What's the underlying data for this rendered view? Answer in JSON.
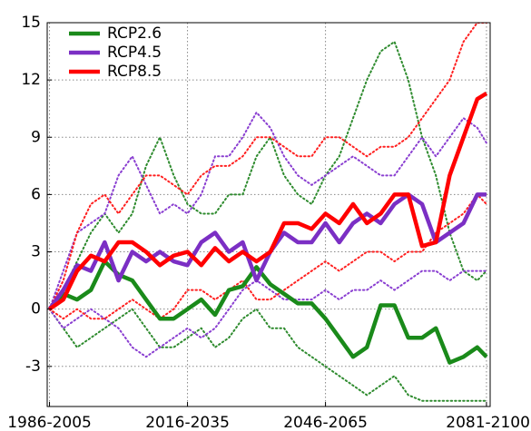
{
  "chart_data": {
    "type": "line",
    "x": [
      1986,
      1989,
      1992,
      1995,
      1998,
      2001,
      2004,
      2007,
      2010,
      2013,
      2016,
      2019,
      2022,
      2025,
      2028,
      2031,
      2034,
      2037,
      2040,
      2043,
      2046,
      2049,
      2052,
      2055,
      2058,
      2061,
      2064,
      2067,
      2070,
      2073,
      2076,
      2079,
      2081
    ],
    "xlim": [
      1985.5,
      2081.8
    ],
    "xticks": [
      {
        "value": 1986,
        "label": "1986-2005"
      },
      {
        "value": 2016,
        "label": "2016-2035"
      },
      {
        "value": 2046,
        "label": "2046-2065"
      },
      {
        "value": 2081,
        "label": "2081-2100"
      }
    ],
    "ylim": [
      -5.1,
      15
    ],
    "yticks": [
      -3,
      0,
      3,
      6,
      9,
      12,
      15
    ],
    "grid": true,
    "legend": "upper-left",
    "series": [
      {
        "color": "#2e8b2e",
        "linestyle": "dotted",
        "values": [
          0,
          1,
          2.5,
          4,
          5,
          4,
          5,
          7.5,
          9,
          7,
          5.5,
          5,
          5,
          6,
          6,
          8,
          9,
          7,
          6,
          5.5,
          7,
          8,
          10,
          12,
          13.5,
          14,
          12,
          9,
          7,
          4,
          2,
          1.5,
          2
        ]
      },
      {
        "color": "#2e8b2e",
        "linestyle": "dotted",
        "values": [
          0,
          -1,
          -2,
          -1.5,
          -1,
          -0.5,
          0,
          -1,
          -2,
          -2,
          -1.5,
          -1,
          -2,
          -1.5,
          -0.5,
          0,
          -1,
          -1,
          -2,
          -2.5,
          -3,
          -3.5,
          -4,
          -4.5,
          -4,
          -3.5,
          -4.5,
          -4.8,
          -4.8,
          -4.8,
          -4.8,
          -4.8,
          -4.8
        ]
      },
      {
        "color": "#8a3fd1",
        "linestyle": "dotted",
        "values": [
          0,
          2,
          4,
          4.5,
          5,
          7,
          8,
          6.5,
          5,
          5.5,
          5,
          6,
          8,
          8,
          9,
          10.3,
          9.5,
          8,
          7,
          6.5,
          7,
          7.5,
          8,
          7.5,
          7,
          7,
          8,
          9,
          8,
          9,
          10,
          9.5,
          8.7
        ]
      },
      {
        "color": "#8a3fd1",
        "linestyle": "dotted",
        "values": [
          0,
          -1,
          -0.5,
          0,
          -0.5,
          -1,
          -2,
          -2.5,
          -2,
          -1.5,
          -1,
          -1.5,
          -1,
          0,
          1,
          1.5,
          1,
          0.5,
          0.5,
          0.5,
          1,
          0.5,
          1,
          1,
          1.5,
          1,
          1.5,
          2,
          2,
          1.5,
          2,
          2,
          2
        ]
      },
      {
        "color": "#ff2020",
        "linestyle": "dotted",
        "values": [
          0,
          1.5,
          4,
          5.5,
          6,
          5,
          6,
          7,
          7,
          6.5,
          6,
          7,
          7.5,
          7.5,
          8,
          9,
          9,
          8.5,
          8,
          8,
          9,
          9,
          8.5,
          8,
          8.5,
          8.5,
          9,
          10,
          11,
          12,
          14,
          15,
          15
        ]
      },
      {
        "color": "#ff2020",
        "linestyle": "dotted",
        "values": [
          0,
          -0.5,
          0,
          -0.5,
          -0.5,
          0,
          0.5,
          0,
          -0.5,
          0,
          1,
          1,
          0.5,
          1,
          1.5,
          0.5,
          0.5,
          1,
          1.5,
          2,
          2.5,
          2,
          2.5,
          3,
          3,
          2.5,
          3,
          3,
          4,
          4.5,
          5,
          6,
          5.5
        ]
      },
      {
        "name": "RCP2.6",
        "color": "#1a8a1a",
        "linestyle": "solid",
        "values": [
          0,
          0.8,
          0.5,
          1.0,
          2.5,
          1.8,
          1.5,
          0.5,
          -0.5,
          -0.5,
          0,
          0.5,
          -0.3,
          1.0,
          1.2,
          2.2,
          1.3,
          0.8,
          0.3,
          0.3,
          -0.5,
          -1.5,
          -2.5,
          -2.0,
          0.2,
          0.2,
          -1.5,
          -1.5,
          -1.0,
          -2.8,
          -2.5,
          -2.0,
          -2.5
        ]
      },
      {
        "name": "RCP4.5",
        "color": "#7b2fc4",
        "linestyle": "solid",
        "values": [
          0,
          1.0,
          2.3,
          2.0,
          3.5,
          1.5,
          3.0,
          2.5,
          3.0,
          2.5,
          2.3,
          3.5,
          4.0,
          3.0,
          3.5,
          1.5,
          3.0,
          4.0,
          3.5,
          3.5,
          4.5,
          3.5,
          4.5,
          5.0,
          4.5,
          5.5,
          6.0,
          5.5,
          3.5,
          4.0,
          4.5,
          6.0,
          6.0
        ]
      },
      {
        "name": "RCP8.5",
        "color": "#ff0000",
        "linestyle": "solid",
        "values": [
          0,
          0.5,
          2.0,
          2.8,
          2.5,
          3.5,
          3.5,
          3.0,
          2.3,
          2.8,
          3.0,
          2.3,
          3.2,
          2.5,
          3.0,
          2.5,
          3.0,
          4.5,
          4.5,
          4.2,
          5.0,
          4.5,
          5.5,
          4.5,
          5.0,
          6.0,
          6.0,
          3.3,
          3.5,
          7.0,
          9.0,
          11.0,
          11.3
        ]
      }
    ]
  }
}
